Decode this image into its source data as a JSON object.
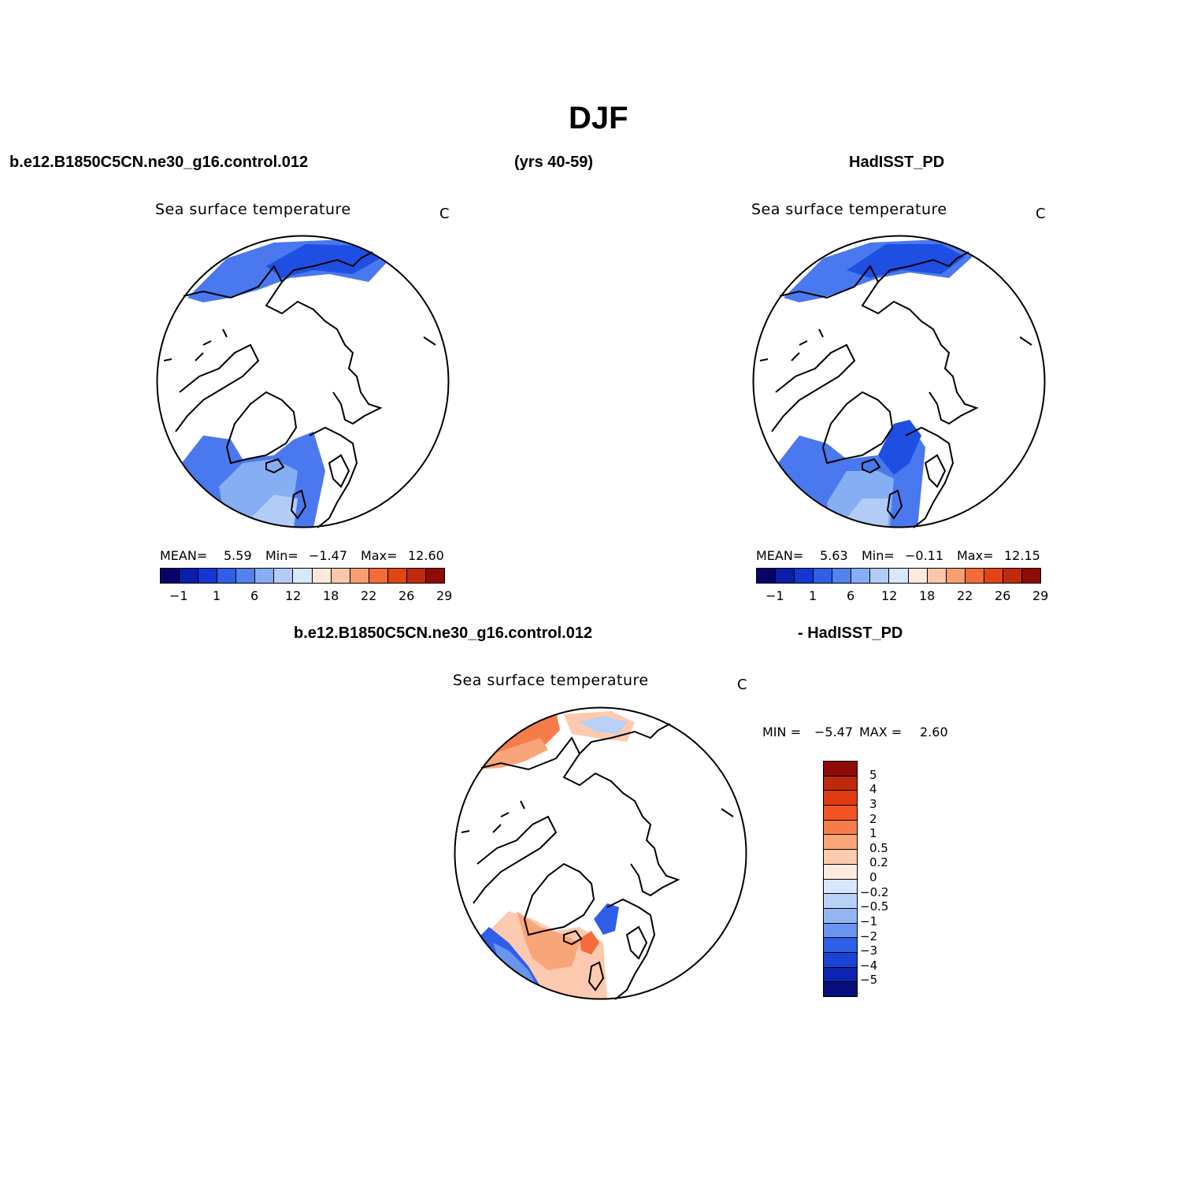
{
  "title": "DJF",
  "case_name": "b.e12.B1850C5CN.ne30_g16.control.012",
  "years": "(yrs 40-59)",
  "obs_name": "HadISST_PD",
  "diff_left": "b.e12.B1850C5CN.ne30_g16.control.012",
  "diff_right": "- HadISST_PD",
  "panels": [
    {
      "variable": "Sea surface temperature",
      "units": "C",
      "mean_label": "MEAN=",
      "mean": "5.59",
      "min_label": "Min=",
      "min": "−1.47",
      "max_label": "Max=",
      "max": "12.60"
    },
    {
      "variable": "Sea surface temperature",
      "units": "C",
      "mean_label": "MEAN=",
      "mean": "5.63",
      "min_label": "Min=",
      "min": "−0.11",
      "max_label": "Max=",
      "max": "12.15"
    }
  ],
  "diff_panel": {
    "variable": "Sea surface temperature",
    "units": "C",
    "min_label": "MIN =",
    "min": "−5.47",
    "max_label": "MAX =",
    "max": "2.60"
  },
  "colorbar_abs": {
    "colors": [
      "#08036b",
      "#0a1ea8",
      "#1536d3",
      "#2f5ee8",
      "#5382ef",
      "#86aef3",
      "#b2ccf6",
      "#d8e7fb",
      "#fde9da",
      "#fbc7aa",
      "#f79f73",
      "#f46c3a",
      "#e04417",
      "#bf2a0d",
      "#8d0a06"
    ],
    "tick_labels": [
      "−1",
      "1",
      "6",
      "12",
      "18",
      "22",
      "26",
      "29"
    ]
  },
  "colorbar_diff": {
    "colors": [
      "#8d0a06",
      "#bf2a0d",
      "#e23a10",
      "#f45424",
      "#f67d49",
      "#f9a57a",
      "#fccaae",
      "#fdebdd",
      "#d8e7fb",
      "#b8d1f7",
      "#93b5f3",
      "#6a94ef",
      "#2f5ee8",
      "#1d43d6",
      "#0c24b0",
      "#060f7d"
    ],
    "tick_labels": [
      "5",
      "4",
      "3",
      "2",
      "1",
      "0.5",
      "0.2",
      "0",
      "−0.2",
      "−0.5",
      "−1",
      "−2",
      "−3",
      "−4",
      "−5"
    ]
  },
  "map_colors": {
    "land_line": "#000000",
    "blue_deep": "#1e4fe2",
    "blue_mid": "#4a78ee",
    "blue_light": "#86aef3",
    "blue_pale": "#b2ccf6",
    "red_mid": "#f67d49",
    "red_light": "#f9a57a",
    "red_pale": "#fccaae"
  }
}
